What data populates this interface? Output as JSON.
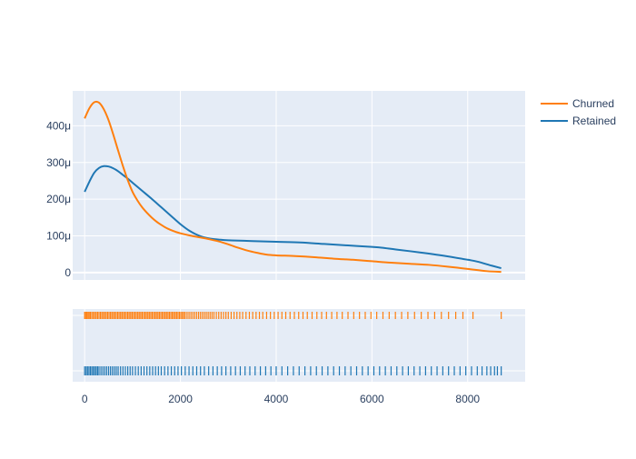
{
  "chart_data": {
    "type": "line",
    "subtype": "distplot-kde-with-rug",
    "title": "",
    "xlabel": "",
    "ylabel": "",
    "x_range": [
      -250,
      9200
    ],
    "y_range": [
      -2e-05,
      0.000495
    ],
    "x_ticks": [
      0,
      2000,
      4000,
      6000,
      8000
    ],
    "x_tick_labels": [
      "0",
      "2000",
      "4000",
      "6000",
      "8000"
    ],
    "y_ticks": [
      0,
      0.0001,
      0.0002,
      0.0003,
      0.0004
    ],
    "y_tick_labels": [
      "0",
      "100μ",
      "200μ",
      "300μ",
      "400μ"
    ],
    "grid": true,
    "legend_position": "top-right",
    "series": [
      {
        "name": "Churned",
        "color": "#ff7f0e",
        "x": [
          0,
          100,
          200,
          300,
          400,
          500,
          600,
          700,
          800,
          900,
          1000,
          1100,
          1200,
          1300,
          1400,
          1500,
          1600,
          1700,
          1800,
          1900,
          2000,
          2200,
          2400,
          2600,
          2800,
          3000,
          3200,
          3400,
          3600,
          3800,
          4000,
          4400,
          4800,
          5200,
          5600,
          6000,
          6400,
          6800,
          7200,
          7600,
          8000,
          8400,
          8700
        ],
        "y": [
          0.00042,
          0.000448,
          0.000464,
          0.000463,
          0.000445,
          0.000415,
          0.000375,
          0.000332,
          0.00029,
          0.000252,
          0.00022,
          0.000197,
          0.000178,
          0.000163,
          0.00015,
          0.000139,
          0.00013,
          0.000122,
          0.000116,
          0.000111,
          0.000107,
          0.000101,
          9.6e-05,
          9.1e-05,
          8.5e-05,
          7.7e-05,
          6.8e-05,
          6e-05,
          5.4e-05,
          4.9e-05,
          4.7e-05,
          4.5e-05,
          4.2e-05,
          3.8e-05,
          3.5e-05,
          3.1e-05,
          2.7e-05,
          2.4e-05,
          2.1e-05,
          1.6e-05,
          1e-05,
          4e-06,
          2e-06
        ]
      },
      {
        "name": "Retained",
        "color": "#1f77b4",
        "x": [
          0,
          100,
          200,
          300,
          400,
          500,
          600,
          700,
          800,
          900,
          1000,
          1200,
          1400,
          1600,
          1800,
          2000,
          2200,
          2400,
          2600,
          2800,
          3000,
          3500,
          4000,
          4500,
          5000,
          5500,
          6000,
          6200,
          6500,
          7000,
          7500,
          8000,
          8200,
          8500,
          8700
        ],
        "y": [
          0.00022,
          0.000248,
          0.000272,
          0.000285,
          0.00029,
          0.000289,
          0.000284,
          0.000276,
          0.000266,
          0.000256,
          0.000245,
          0.000223,
          0.000201,
          0.000178,
          0.000155,
          0.000132,
          0.000113,
          0.0001,
          9.3e-05,
          9e-05,
          8.8e-05,
          8.6e-05,
          8.4e-05,
          8.2e-05,
          7.8e-05,
          7.4e-05,
          7e-05,
          6.8e-05,
          6.3e-05,
          5.5e-05,
          4.6e-05,
          3.5e-05,
          3e-05,
          1.9e-05,
          1.2e-05
        ]
      }
    ],
    "rug": {
      "Churned": [
        0,
        20,
        45,
        70,
        95,
        120,
        150,
        180,
        210,
        240,
        270,
        300,
        330,
        360,
        390,
        420,
        450,
        480,
        510,
        540,
        570,
        600,
        630,
        660,
        690,
        720,
        750,
        780,
        810,
        840,
        870,
        900,
        930,
        960,
        990,
        1020,
        1050,
        1080,
        1110,
        1140,
        1170,
        1200,
        1230,
        1260,
        1290,
        1320,
        1350,
        1380,
        1410,
        1440,
        1470,
        1500,
        1530,
        1560,
        1590,
        1620,
        1650,
        1680,
        1710,
        1740,
        1770,
        1800,
        1830,
        1860,
        1890,
        1920,
        1950,
        1980,
        2010,
        2040,
        2070,
        2100,
        2140,
        2180,
        2220,
        2260,
        2300,
        2340,
        2380,
        2420,
        2460,
        2500,
        2540,
        2580,
        2620,
        2660,
        2700,
        2750,
        2800,
        2850,
        2900,
        2950,
        3000,
        3060,
        3120,
        3180,
        3240,
        3300,
        3370,
        3440,
        3510,
        3580,
        3650,
        3720,
        3800,
        3880,
        3960,
        4040,
        4120,
        4200,
        4290,
        4380,
        4470,
        4560,
        4650,
        4750,
        4850,
        4950,
        5050,
        5160,
        5270,
        5380,
        5500,
        5620,
        5740,
        5860,
        5980,
        6100,
        6230,
        6360,
        6490,
        6620,
        6750,
        6890,
        7030,
        7170,
        7310,
        7450,
        7600,
        7750,
        7900,
        8110,
        8700
      ],
      "Retained": [
        0,
        30,
        60,
        90,
        120,
        150,
        180,
        210,
        240,
        270,
        300,
        340,
        380,
        420,
        460,
        500,
        540,
        580,
        620,
        660,
        700,
        750,
        800,
        850,
        900,
        950,
        1000,
        1060,
        1120,
        1180,
        1240,
        1300,
        1360,
        1420,
        1480,
        1540,
        1600,
        1670,
        1740,
        1810,
        1880,
        1950,
        2020,
        2100,
        2180,
        2260,
        2340,
        2420,
        2500,
        2590,
        2680,
        2770,
        2860,
        2950,
        3050,
        3150,
        3250,
        3350,
        3450,
        3560,
        3670,
        3780,
        3890,
        4000,
        4120,
        4240,
        4360,
        4480,
        4600,
        4720,
        4840,
        4960,
        5080,
        5200,
        5320,
        5440,
        5560,
        5680,
        5800,
        5920,
        6040,
        6160,
        6280,
        6400,
        6520,
        6640,
        6760,
        6880,
        7000,
        7120,
        7240,
        7360,
        7480,
        7600,
        7720,
        7840,
        7960,
        8080,
        8200,
        8300,
        8400,
        8480,
        8560,
        8620,
        8700
      ]
    }
  }
}
